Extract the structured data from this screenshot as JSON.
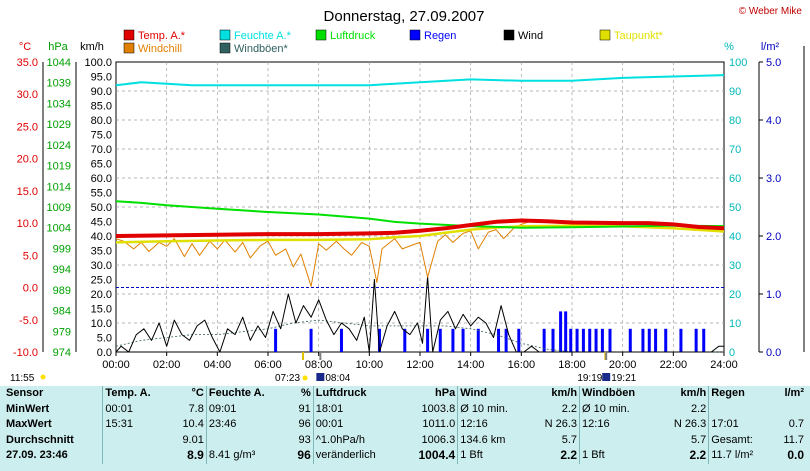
{
  "chart_data": {
    "type": "line",
    "title": "Donnerstag, 27.09.2007",
    "copyright": "© Weber Mike",
    "axis_units": {
      "temp": "°C",
      "pressure": "hPa",
      "wind": "km/h",
      "humidity": "%",
      "rain": "l/m²"
    },
    "left_axes": {
      "temp_ticks": [
        "35.0",
        "30.0",
        "25.0",
        "20.0",
        "15.0",
        "10.0",
        "5.0",
        "0.0",
        "-5.0",
        "-10.0"
      ],
      "pressure_ticks": [
        "1044",
        "1039",
        "1034",
        "1029",
        "1024",
        "1019",
        "1014",
        "1009",
        "1004",
        "999",
        "994",
        "989",
        "984",
        "979",
        "974"
      ],
      "wind_ticks": [
        "100.0",
        "95.0",
        "90.0",
        "85.0",
        "80.0",
        "75.0",
        "70.0",
        "65.0",
        "60.0",
        "55.0",
        "50.0",
        "45.0",
        "40.0",
        "35.0",
        "30.0",
        "25.0",
        "20.0",
        "15.0",
        "10.0",
        "5.0",
        "0.0"
      ],
      "wind_range": [
        0,
        100
      ]
    },
    "right_axes": {
      "humidity_ticks": [
        "100",
        "90",
        "80",
        "70",
        "60",
        "50",
        "40",
        "30",
        "20",
        "10",
        "0"
      ],
      "rain_ticks": [
        "5.0",
        "4.0",
        "3.0",
        "2.0",
        "1.0",
        "0.0"
      ],
      "rain_range": [
        0,
        5
      ]
    },
    "x": {
      "ticks": [
        "00:00",
        "02:00",
        "04:00",
        "06:00",
        "08:00",
        "10:00",
        "12:00",
        "14:00",
        "16:00",
        "18:00",
        "20:00",
        "22:00",
        "24:00"
      ],
      "range_hours": [
        0,
        24
      ]
    },
    "legend": [
      {
        "name": "Temp. A.*",
        "color": "#e00000"
      },
      {
        "name": "Feuchte A.*",
        "color": "#00e0e0"
      },
      {
        "name": "Luftdruck",
        "color": "#00e000"
      },
      {
        "name": "Regen",
        "color": "#0000ff"
      },
      {
        "name": "Wind",
        "color": "#000000"
      },
      {
        "name": "Taupunkt*",
        "color": "#e0e000"
      },
      {
        "name": "Windchill",
        "color": "#e08000"
      },
      {
        "name": "Windböen*",
        "color": "#306060"
      }
    ],
    "series": [
      {
        "name": "Temp. A.*",
        "color": "#e00000",
        "unit": "°C",
        "points": [
          [
            0,
            8.0
          ],
          [
            2,
            8.1
          ],
          [
            4,
            8.2
          ],
          [
            6,
            8.3
          ],
          [
            8,
            8.3
          ],
          [
            10,
            8.4
          ],
          [
            11,
            8.5
          ],
          [
            12,
            8.8
          ],
          [
            13,
            9.2
          ],
          [
            14,
            9.7
          ],
          [
            15,
            10.2
          ],
          [
            16,
            10.4
          ],
          [
            17,
            10.3
          ],
          [
            18,
            10.1
          ],
          [
            20,
            10.0
          ],
          [
            21,
            10.0
          ],
          [
            22,
            9.8
          ],
          [
            23,
            9.4
          ],
          [
            24,
            9.2
          ]
        ]
      },
      {
        "name": "Feuchte A.*",
        "color": "#00e0e0",
        "unit": "%",
        "points": [
          [
            0,
            92
          ],
          [
            1,
            93
          ],
          [
            3,
            92
          ],
          [
            6,
            92
          ],
          [
            8,
            92
          ],
          [
            10,
            92
          ],
          [
            11,
            92.5
          ],
          [
            12,
            93
          ],
          [
            14,
            94
          ],
          [
            16,
            93.5
          ],
          [
            18,
            93.5
          ],
          [
            20,
            94.5
          ],
          [
            22,
            95
          ],
          [
            24,
            95.5
          ]
        ]
      },
      {
        "name": "Luftdruck",
        "color": "#00e000",
        "unit": "hPa",
        "points": [
          [
            0,
            1010.4
          ],
          [
            1,
            1010.0
          ],
          [
            2,
            1009.4
          ],
          [
            4,
            1008.6
          ],
          [
            6,
            1007.8
          ],
          [
            8,
            1007.2
          ],
          [
            10,
            1006.2
          ],
          [
            11,
            1005.4
          ],
          [
            12,
            1005.0
          ],
          [
            14,
            1004.4
          ],
          [
            16,
            1004.0
          ],
          [
            18,
            1004.1
          ],
          [
            20,
            1004.3
          ],
          [
            22,
            1004.5
          ],
          [
            24,
            1004.4
          ]
        ]
      },
      {
        "name": "Taupunkt*",
        "color": "#e0e000",
        "unit": "°C",
        "points": [
          [
            0,
            7.0
          ],
          [
            2,
            7.2
          ],
          [
            4,
            7.3
          ],
          [
            6,
            7.4
          ],
          [
            8,
            7.4
          ],
          [
            10,
            7.5
          ],
          [
            11,
            7.8
          ],
          [
            12,
            8.0
          ],
          [
            13,
            8.5
          ],
          [
            14,
            9.0
          ],
          [
            15,
            9.3
          ],
          [
            16,
            9.5
          ],
          [
            18,
            9.6
          ],
          [
            20,
            9.5
          ],
          [
            22,
            9.2
          ],
          [
            24,
            8.7
          ]
        ]
      },
      {
        "name": "Windchill",
        "color": "#e08000",
        "unit": "°C",
        "points": [
          [
            0,
            7.6
          ],
          [
            0.3,
            7.2
          ],
          [
            0.7,
            6.0
          ],
          [
            1,
            7.0
          ],
          [
            1.3,
            5.6
          ],
          [
            1.7,
            7.0
          ],
          [
            2,
            6.4
          ],
          [
            2.3,
            7.6
          ],
          [
            2.7,
            4.8
          ],
          [
            3,
            6.8
          ],
          [
            3.3,
            5.0
          ],
          [
            3.7,
            7.2
          ],
          [
            4,
            6.0
          ],
          [
            4.3,
            7.4
          ],
          [
            4.7,
            5.5
          ],
          [
            5,
            7.0
          ],
          [
            5.3,
            4.6
          ],
          [
            5.7,
            6.5
          ],
          [
            6,
            7.2
          ],
          [
            6.3,
            5.0
          ],
          [
            6.7,
            6.0
          ],
          [
            7,
            3.2
          ],
          [
            7.3,
            5.2
          ],
          [
            7.7,
            0.2
          ],
          [
            8,
            6.8
          ],
          [
            8.3,
            5.8
          ],
          [
            8.7,
            7.2
          ],
          [
            9,
            6.0
          ],
          [
            9.3,
            5.0
          ],
          [
            9.7,
            7.0
          ],
          [
            10,
            6.4
          ],
          [
            10.3,
            0.8
          ],
          [
            10.5,
            6.0
          ],
          [
            11,
            7.6
          ],
          [
            11.3,
            6.0
          ],
          [
            11.7,
            6.6
          ],
          [
            12,
            7.0
          ],
          [
            12.3,
            1.6
          ],
          [
            12.7,
            7.2
          ],
          [
            13,
            8.2
          ],
          [
            13.3,
            7.0
          ],
          [
            13.7,
            8.4
          ],
          [
            14,
            8.8
          ],
          [
            14.3,
            6.0
          ],
          [
            14.7,
            8.6
          ],
          [
            15,
            9.0
          ],
          [
            15.3,
            7.6
          ],
          [
            15.7,
            9.2
          ],
          [
            16,
            9.8
          ],
          [
            16.3,
            10.2
          ],
          [
            17,
            10.2
          ],
          [
            18,
            10.0
          ],
          [
            20,
            9.9
          ],
          [
            22,
            9.7
          ],
          [
            24,
            9.1
          ]
        ]
      },
      {
        "name": "Wind",
        "color": "#000000",
        "unit": "km/h",
        "points": [
          [
            0,
            0
          ],
          [
            0.2,
            2
          ],
          [
            0.5,
            0
          ],
          [
            0.8,
            6
          ],
          [
            1.1,
            8
          ],
          [
            1.4,
            4
          ],
          [
            1.7,
            10
          ],
          [
            2,
            2
          ],
          [
            2.3,
            11
          ],
          [
            2.6,
            6
          ],
          [
            2.9,
            4
          ],
          [
            3.2,
            9
          ],
          [
            3.5,
            11
          ],
          [
            3.8,
            5
          ],
          [
            4.1,
            0
          ],
          [
            4.4,
            8
          ],
          [
            4.7,
            6
          ],
          [
            5,
            12
          ],
          [
            5.3,
            4
          ],
          [
            5.6,
            9
          ],
          [
            5.9,
            5
          ],
          [
            6.2,
            14
          ],
          [
            6.5,
            8
          ],
          [
            6.8,
            20
          ],
          [
            7.1,
            10
          ],
          [
            7.4,
            16
          ],
          [
            7.7,
            12
          ],
          [
            8,
            18
          ],
          [
            8.3,
            11
          ],
          [
            8.6,
            6
          ],
          [
            8.9,
            10
          ],
          [
            9.2,
            8
          ],
          [
            9.5,
            4
          ],
          [
            9.8,
            12
          ],
          [
            10,
            0
          ],
          [
            10.2,
            25
          ],
          [
            10.4,
            0
          ],
          [
            10.7,
            9
          ],
          [
            11,
            14
          ],
          [
            11.3,
            8
          ],
          [
            11.6,
            6
          ],
          [
            11.9,
            10
          ],
          [
            12.1,
            3
          ],
          [
            12.3,
            26
          ],
          [
            12.5,
            0
          ],
          [
            12.8,
            11
          ],
          [
            13.1,
            14
          ],
          [
            13.4,
            8
          ],
          [
            13.7,
            13
          ],
          [
            14,
            9
          ],
          [
            14.3,
            12
          ],
          [
            14.6,
            10
          ],
          [
            14.9,
            5
          ],
          [
            15.2,
            16
          ],
          [
            15.5,
            6
          ],
          [
            15.8,
            0
          ],
          [
            16.1,
            0
          ],
          [
            16.4,
            2
          ],
          [
            16.7,
            0
          ],
          [
            17,
            0
          ],
          [
            18,
            0
          ],
          [
            20,
            0
          ],
          [
            22,
            0
          ],
          [
            23.5,
            0
          ],
          [
            23.8,
            2
          ],
          [
            24,
            2
          ]
        ]
      },
      {
        "name": "Windböen*",
        "color": "#306060",
        "unit": "km/h",
        "points": [
          [
            0,
            2
          ],
          [
            1,
            4
          ],
          [
            2,
            5
          ],
          [
            3,
            6
          ],
          [
            4,
            6
          ],
          [
            5,
            7
          ],
          [
            6,
            8
          ],
          [
            7,
            10
          ],
          [
            8,
            11
          ],
          [
            9,
            10
          ],
          [
            10,
            9
          ],
          [
            11,
            9
          ],
          [
            12,
            9
          ],
          [
            13,
            9
          ],
          [
            14,
            8
          ],
          [
            15,
            6
          ],
          [
            16,
            3
          ],
          [
            17,
            1
          ],
          [
            18,
            0
          ],
          [
            20,
            0
          ],
          [
            22,
            0
          ],
          [
            24,
            0
          ]
        ]
      }
    ],
    "rain_bars": {
      "name": "Regen",
      "color": "#0000ff",
      "unit": "l/m²",
      "bars": [
        [
          6.3,
          0.4
        ],
        [
          7.7,
          0.4
        ],
        [
          8.9,
          0.4
        ],
        [
          10.4,
          0.4
        ],
        [
          11.4,
          0.4
        ],
        [
          12.3,
          0.4
        ],
        [
          12.8,
          0.4
        ],
        [
          13.3,
          0.4
        ],
        [
          13.7,
          0.4
        ],
        [
          14.3,
          0.4
        ],
        [
          15.1,
          0.4
        ],
        [
          15.4,
          0.4
        ],
        [
          15.9,
          0.4
        ],
        [
          16.9,
          0.4
        ],
        [
          17.25,
          0.4
        ],
        [
          17.55,
          0.7
        ],
        [
          17.75,
          0.7
        ],
        [
          17.95,
          0.4
        ],
        [
          18.2,
          0.4
        ],
        [
          18.45,
          0.4
        ],
        [
          18.7,
          0.4
        ],
        [
          18.95,
          0.4
        ],
        [
          19.2,
          0.4
        ],
        [
          19.5,
          0.4
        ],
        [
          20.3,
          0.4
        ],
        [
          20.8,
          0.4
        ],
        [
          21.05,
          0.4
        ],
        [
          21.3,
          0.4
        ],
        [
          21.7,
          0.4
        ],
        [
          22.3,
          0.4
        ],
        [
          22.9,
          0.4
        ],
        [
          23.2,
          0.4
        ]
      ]
    },
    "sun": {
      "sunrise": "07:23",
      "sunset": "19:19",
      "moonrise": "08:04",
      "moonset": "19:21",
      "now": "11:55"
    }
  },
  "stats": {
    "header": [
      "Sensor",
      "Temp. A.",
      "°C",
      "Feuchte A.",
      "%",
      "Luftdruck",
      "hPa",
      "Wind",
      "km/h",
      "Windböen",
      "km/h",
      "Regen",
      "l/m²"
    ],
    "rows": [
      {
        "label": "MinWert",
        "cells": [
          "00:01",
          "7.8",
          "09:01",
          "91",
          "18:01",
          "1003.8",
          "Ø 10 min.",
          "2.2",
          "Ø 10 min.",
          "2.2",
          "",
          ""
        ]
      },
      {
        "label": "MaxWert",
        "cells": [
          "15:31",
          "10.4",
          "23:46",
          "96",
          "00:01",
          "1011.0",
          "12:16",
          "N 26.3",
          "12:16",
          "N 26.3",
          "17:01",
          "0.7"
        ]
      },
      {
        "label": "Durchschnitt",
        "cells": [
          "",
          "9.01",
          "",
          "93",
          "^1.0hPa/h",
          "1006.3",
          "134.6 km",
          "5.7",
          "",
          "5.7",
          "Gesamt:",
          "11.7"
        ]
      },
      {
        "label": "27.09. 23:46",
        "cells": [
          "",
          "8.9",
          "8.41 g/m³",
          "96",
          "veränderlich",
          "1004.4",
          "1 Bft",
          "2.2",
          "1 Bft",
          "2.2",
          "11.7 l/m²",
          "0.0"
        ]
      }
    ]
  }
}
